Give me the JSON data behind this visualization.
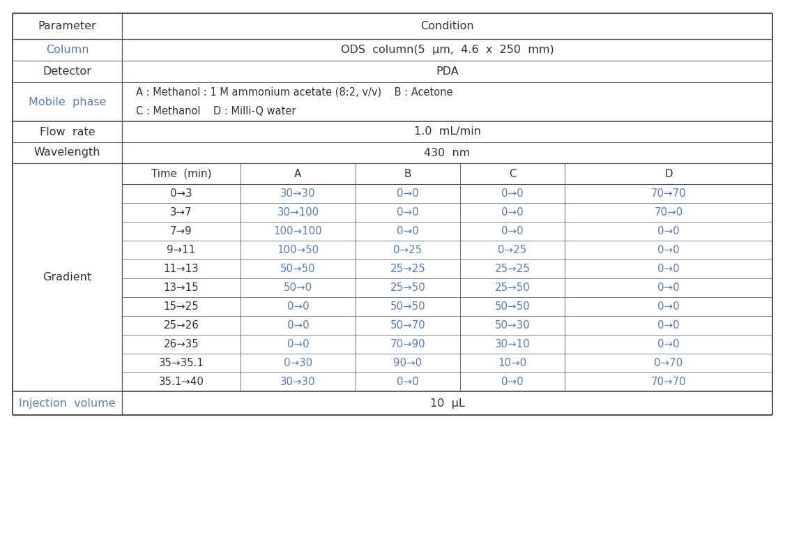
{
  "bg_color": "#ffffff",
  "text_blue": "#5b7db1",
  "text_dark": "#333333",
  "line_color": "#555555",
  "param_label": "Parameter",
  "cond_label": "Condition",
  "col_row": {
    "param": "Column",
    "cond": "ODS  column(5  μm,  4.6  x  250  mm)"
  },
  "det_row": {
    "param": "Detector",
    "cond": "PDA"
  },
  "mob_row": {
    "param": "Mobile  phase",
    "line1": "A : Methanol : 1 M ammonium acetate (8:2, v/v)    B : Acetone",
    "line2": "C : Methanol    D : Milli-Q water"
  },
  "flow_row": {
    "param": "Flow  rate",
    "cond": "1.0  mL/min"
  },
  "wave_row": {
    "param": "Wavelength",
    "cond": "430  nm"
  },
  "gradient_label": "Gradient",
  "grad_headers": [
    "Time  (min)",
    "A",
    "B",
    "C",
    "D"
  ],
  "gradient_rows": [
    [
      "0→3",
      "30→30",
      "0→0",
      "0→0",
      "70→70"
    ],
    [
      "3→7",
      "30→100",
      "0→0",
      "0→0",
      "70→0"
    ],
    [
      "7→9",
      "100→100",
      "0→0",
      "0→0",
      "0→0"
    ],
    [
      "9→11",
      "100→50",
      "0→25",
      "0→25",
      "0→0"
    ],
    [
      "11→13",
      "50→50",
      "25→25",
      "25→25",
      "0→0"
    ],
    [
      "13→15",
      "50→0",
      "25→50",
      "25→50",
      "0→0"
    ],
    [
      "15→25",
      "0→0",
      "50→50",
      "50→50",
      "0→0"
    ],
    [
      "25→26",
      "0→0",
      "50→70",
      "50→30",
      "0→0"
    ],
    [
      "26→35",
      "0→0",
      "70→90",
      "30→10",
      "0→0"
    ],
    [
      "35→35.1",
      "0→30",
      "90→0",
      "10→0",
      "0→70"
    ],
    [
      "35.1→40",
      "30→30",
      "0→0",
      "0→0",
      "70→70"
    ]
  ],
  "inj_row": {
    "param": "Injection  volume",
    "cond": "10  μL"
  }
}
